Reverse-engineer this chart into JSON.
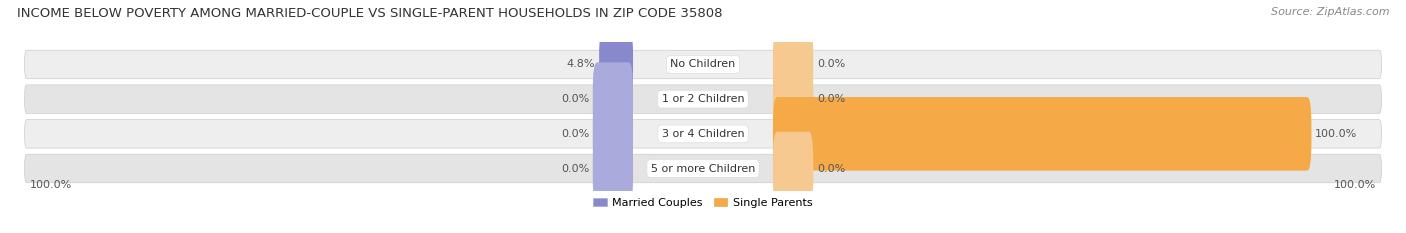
{
  "title": "INCOME BELOW POVERTY AMONG MARRIED-COUPLE VS SINGLE-PARENT HOUSEHOLDS IN ZIP CODE 35808",
  "source": "Source: ZipAtlas.com",
  "categories": [
    "No Children",
    "1 or 2 Children",
    "3 or 4 Children",
    "5 or more Children"
  ],
  "married_values": [
    4.8,
    0.0,
    0.0,
    0.0
  ],
  "single_values": [
    0.0,
    0.0,
    100.0,
    0.0
  ],
  "married_color": "#8888cc",
  "single_color": "#f5a947",
  "married_stub_color": "#aaaadd",
  "single_stub_color": "#f5c990",
  "row_bg_even": "#eeeeee",
  "row_bg_odd": "#e4e4e4",
  "label_color": "#555555",
  "title_color": "#333333",
  "source_color": "#888888",
  "axis_label_left": "100.0%",
  "axis_label_right": "100.0%",
  "title_fontsize": 9.5,
  "source_fontsize": 8,
  "cat_fontsize": 8,
  "val_fontsize": 8,
  "legend_fontsize": 8,
  "max_val": 100,
  "stub_pct": 6
}
